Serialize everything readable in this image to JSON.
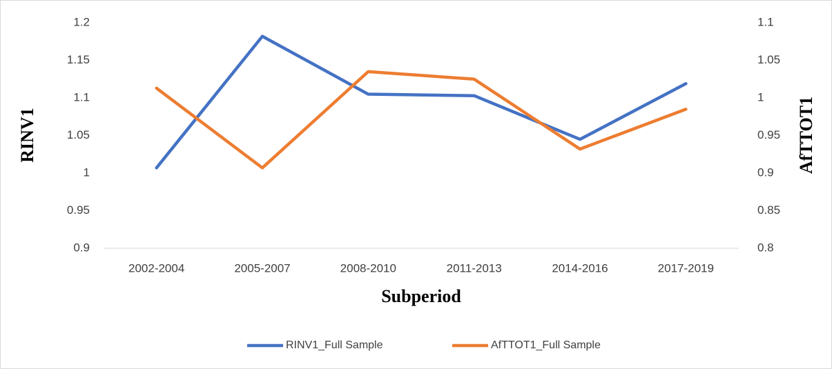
{
  "chart_data": {
    "type": "line",
    "x_label": "Subperiod",
    "y_label": "RINV1",
    "y2_label": "AfTTOT1",
    "categories": [
      "2002-2004",
      "2005-2007",
      "2008-2010",
      "2011-2013",
      "2014-2016",
      "2017-2019"
    ],
    "series": [
      {
        "name": "RINV1_Full Sample",
        "color": "#4472c4",
        "values": [
          1.007,
          1.182,
          1.105,
          1.103,
          1.045,
          1.119
        ]
      },
      {
        "name": "AfTTOT1_Full Sample",
        "color": "#ed7d31",
        "axis": "y2",
        "values": [
          1.013,
          0.907,
          1.035,
          1.025,
          0.932,
          0.985
        ]
      }
    ],
    "ylim": [
      0.9,
      1.2
    ],
    "yticks": [
      0.9,
      0.95,
      1,
      1.05,
      1.1,
      1.15,
      1.2
    ],
    "y2lim": [
      0.8,
      1.1
    ],
    "y2ticks": [
      0.8,
      0.85,
      0.9,
      0.95,
      1,
      1.05,
      1.1
    ],
    "grid": false,
    "legend": "bottom"
  }
}
